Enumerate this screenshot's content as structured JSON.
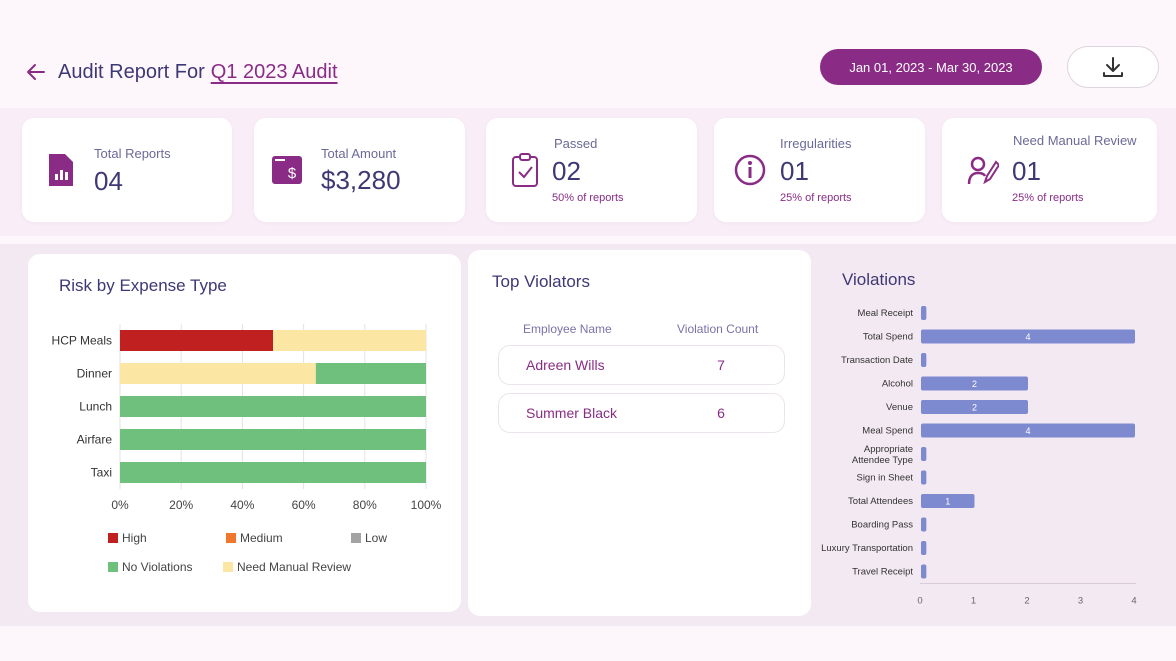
{
  "header": {
    "title_prefix": "Audit Report For",
    "title_link": "Q1 2023 Audit",
    "date_range": "Jan 01, 2023 - Mar 30, 2023"
  },
  "kpis": [
    {
      "label": "Total Reports",
      "value": "04",
      "sub": "",
      "icon": "report-doc-icon"
    },
    {
      "label": "Total Amount",
      "value": "$3,280",
      "sub": "",
      "icon": "dollar-wallet-icon"
    },
    {
      "label": "Passed",
      "value": "02",
      "sub": "50% of reports",
      "icon": "clipboard-check-icon"
    },
    {
      "label": "Irregularities",
      "value": "01",
      "sub": "25% of reports",
      "icon": "info-circle-icon"
    },
    {
      "label": "Need Manual Review",
      "value": "01",
      "sub": "25% of reports",
      "icon": "user-edit-icon"
    }
  ],
  "risk_panel": {
    "title": "Risk by Expense Type"
  },
  "violators": {
    "title": "Top Violators",
    "col_name": "Employee Name",
    "col_count": "Violation Count",
    "rows": [
      {
        "name": "Adreen Wills",
        "count": "7"
      },
      {
        "name": "Summer Black",
        "count": "6"
      }
    ]
  },
  "violations_panel": {
    "title": "Violations"
  },
  "colors": {
    "accent": "#8a2c86",
    "high": "#c0201f",
    "medium": "#f0782c",
    "low": "#a3a3a3",
    "no_violations": "#6fc07c",
    "need_manual_review": "#fbe6a4",
    "violation_bar": "#7e8ad0"
  },
  "chart_data": [
    {
      "type": "bar",
      "orientation": "horizontal",
      "stacked": true,
      "percent": true,
      "title": "Risk by Expense Type",
      "categories": [
        "HCP Meals",
        "Dinner",
        "Lunch",
        "Airfare",
        "Taxi"
      ],
      "series": [
        {
          "name": "High",
          "values": [
            50,
            0,
            0,
            0,
            0
          ]
        },
        {
          "name": "Medium",
          "values": [
            0,
            0,
            0,
            0,
            0
          ]
        },
        {
          "name": "Low",
          "values": [
            0,
            0,
            0,
            0,
            0
          ]
        },
        {
          "name": "No Violations",
          "values": [
            0,
            36,
            100,
            100,
            100
          ]
        },
        {
          "name": "Need Manual Review",
          "values": [
            50,
            64,
            0,
            0,
            0
          ]
        }
      ],
      "xticks": [
        "0%",
        "20%",
        "40%",
        "60%",
        "80%",
        "100%"
      ],
      "xlim": [
        0,
        100
      ],
      "grid": true,
      "legend": "bottom"
    },
    {
      "type": "bar",
      "orientation": "horizontal",
      "title": "Violations",
      "categories": [
        "Meal Receipt",
        "Total Spend",
        "Transaction Date",
        "Alcohol",
        "Venue",
        "Meal Spend",
        "Appropriate Attendee Type",
        "Sign in Sheet",
        "Total Attendees",
        "Boarding Pass",
        "Luxury Transportation",
        "Travel Receipt"
      ],
      "values": [
        0.1,
        4,
        0.1,
        2,
        2,
        4,
        0.1,
        0.1,
        1,
        0.1,
        0.1,
        0.1
      ],
      "data_labels": [
        "",
        "4",
        "",
        "2",
        "2",
        "4",
        "",
        "",
        "1",
        "",
        "",
        ""
      ],
      "xticks": [
        "0",
        "1",
        "2",
        "3",
        "4"
      ],
      "xlim": [
        0,
        4
      ],
      "grid": false
    }
  ]
}
